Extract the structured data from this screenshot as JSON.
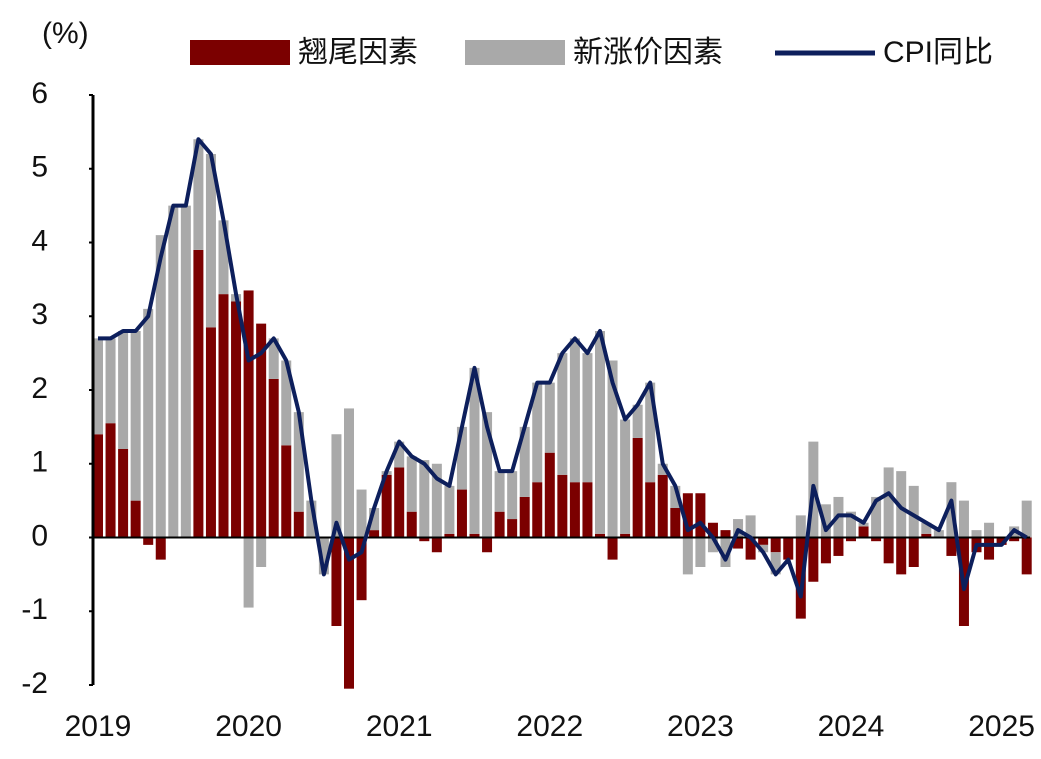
{
  "chart_data": {
    "type": "bar_line",
    "unit_label": "(%)",
    "categories": [
      "2019",
      null,
      null,
      null,
      null,
      null,
      null,
      null,
      null,
      null,
      null,
      null,
      "2020",
      null,
      null,
      null,
      null,
      null,
      null,
      null,
      null,
      null,
      null,
      null,
      "2021",
      null,
      null,
      null,
      null,
      null,
      null,
      null,
      null,
      null,
      null,
      null,
      "2022",
      null,
      null,
      null,
      null,
      null,
      null,
      null,
      null,
      null,
      null,
      null,
      "2023",
      null,
      null,
      null,
      null,
      null,
      null,
      null,
      null,
      null,
      null,
      null,
      "2024",
      null,
      null,
      null,
      null,
      null,
      null,
      null,
      null,
      null,
      null,
      null,
      "2025",
      null,
      null
    ],
    "series": [
      {
        "name": "翘尾因素",
        "kind": "bar",
        "color": "#7b0000",
        "values": [
          1.4,
          1.55,
          1.2,
          0.5,
          -0.1,
          -0.3,
          0,
          0,
          3.9,
          2.85,
          3.3,
          3.2,
          3.35,
          2.9,
          2.15,
          1.25,
          0.35,
          0,
          0,
          -1.2,
          -2.05,
          -0.85,
          0.1,
          0.85,
          0.95,
          0.35,
          -0.05,
          -0.2,
          0.05,
          0.65,
          0.05,
          -0.2,
          0.35,
          0.25,
          0.55,
          0.75,
          1.15,
          0.85,
          0.75,
          0.75,
          0.05,
          -0.3,
          0.05,
          1.35,
          0.75,
          0.85,
          0.4,
          0.6,
          0.6,
          0.2,
          0.1,
          -0.15,
          -0.3,
          -0.1,
          -0.2,
          -0.3,
          -1.1,
          -0.6,
          -0.35,
          -0.25,
          -0.05,
          0.15,
          -0.05,
          -0.35,
          -0.5,
          -0.4,
          0.05,
          0,
          -0.25,
          -1.2,
          -0.2,
          -0.3,
          -0.1,
          -0.05,
          -0.5
        ]
      },
      {
        "name": "新涨价因素",
        "kind": "bar",
        "color": "#a9a9a9",
        "values": [
          1.3,
          1.15,
          1.6,
          2.3,
          3.1,
          4.1,
          4.5,
          4.5,
          1.5,
          2.35,
          1.0,
          0.1,
          -0.95,
          -0.4,
          0.55,
          1.15,
          1.35,
          0.5,
          -0.5,
          1.4,
          1.75,
          0.65,
          0.3,
          0.05,
          0.35,
          0.75,
          1.05,
          1.0,
          0.65,
          0.85,
          2.25,
          1.7,
          0.55,
          0.65,
          0.95,
          1.35,
          0.95,
          1.65,
          1.95,
          1.75,
          2.75,
          2.4,
          1.55,
          0.45,
          1.35,
          0.15,
          0.3,
          -0.5,
          -0.4,
          -0.2,
          -0.4,
          0.25,
          0.3,
          -0.1,
          -0.3,
          0,
          0.3,
          1.3,
          0.45,
          0.55,
          0.35,
          0.05,
          0.55,
          0.95,
          0.9,
          0.7,
          0.15,
          0.1,
          0.75,
          0.5,
          0.1,
          0.2,
          0,
          0.15,
          0.5
        ]
      },
      {
        "name": "CPI同比",
        "kind": "line",
        "color": "#0d1f5c",
        "values": [
          2.7,
          2.7,
          2.8,
          2.8,
          3.0,
          3.8,
          4.5,
          4.5,
          5.4,
          5.2,
          4.3,
          3.3,
          2.4,
          2.5,
          2.7,
          2.4,
          1.7,
          0.5,
          -0.5,
          0.2,
          -0.3,
          -0.2,
          0.4,
          0.9,
          1.3,
          1.1,
          1.0,
          0.8,
          0.7,
          1.5,
          2.3,
          1.5,
          0.9,
          0.9,
          1.5,
          2.1,
          2.1,
          2.5,
          2.7,
          2.5,
          2.8,
          2.1,
          1.6,
          1.8,
          2.1,
          1.0,
          0.7,
          0.1,
          0.2,
          0.0,
          -0.3,
          0.1,
          0.0,
          -0.2,
          -0.5,
          -0.3,
          -0.8,
          0.7,
          0.1,
          0.3,
          0.3,
          0.2,
          0.5,
          0.6,
          0.4,
          0.3,
          0.2,
          0.1,
          0.5,
          -0.7,
          -0.1,
          -0.1,
          -0.1,
          0.1,
          0.0
        ]
      }
    ],
    "ylim": [
      -2,
      6
    ],
    "yticks": [
      -2,
      -1,
      0,
      1,
      2,
      3,
      4,
      5,
      6
    ],
    "grid": false,
    "legend": "top"
  }
}
